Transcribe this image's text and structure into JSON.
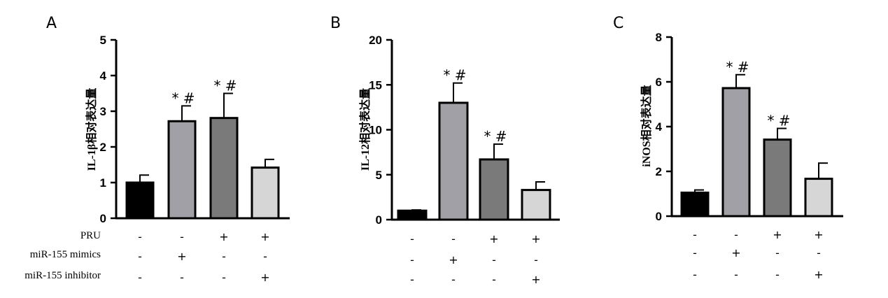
{
  "condition_labels": [
    "PRU",
    "miR-155 mimics",
    "miR-155 inhibitor"
  ],
  "conditions": [
    [
      "-",
      "-",
      "+",
      "+"
    ],
    [
      "-",
      "+",
      "-",
      "-"
    ],
    [
      "-",
      "-",
      "-",
      "+"
    ]
  ],
  "bar_colors": [
    "#000000",
    "#a0a0a6",
    "#7a7a7a",
    "#d6d6d6"
  ],
  "chart_data": [
    {
      "type": "bar",
      "panel": "A",
      "ylabel": "IL-1β相对表达量",
      "ylim": [
        0,
        5
      ],
      "yticks": [
        "0",
        "1",
        "2",
        "3",
        "4",
        "5"
      ],
      "values": [
        1.0,
        2.72,
        2.81,
        1.42
      ],
      "errors": [
        0.21,
        0.43,
        0.69,
        0.23
      ],
      "annotations": [
        "",
        "* #",
        "* #",
        ""
      ]
    },
    {
      "type": "bar",
      "panel": "B",
      "ylabel": "IL-12相对表达量",
      "ylim": [
        0,
        20
      ],
      "yticks": [
        "0",
        "5",
        "10",
        "15",
        "20"
      ],
      "values": [
        1.0,
        13.0,
        6.7,
        3.3
      ],
      "errors": [
        0.08,
        2.2,
        1.7,
        0.9
      ],
      "annotations": [
        "",
        "* #",
        "* #",
        ""
      ]
    },
    {
      "type": "bar",
      "panel": "C",
      "ylabel": "iNOS相对表达量",
      "ylim": [
        0,
        8
      ],
      "yticks": [
        "0",
        "2",
        "4",
        "6",
        "8"
      ],
      "values": [
        1.05,
        5.72,
        3.42,
        1.67
      ],
      "errors": [
        0.12,
        0.6,
        0.5,
        0.7
      ],
      "annotations": [
        "",
        "* #",
        "* #",
        ""
      ]
    }
  ]
}
